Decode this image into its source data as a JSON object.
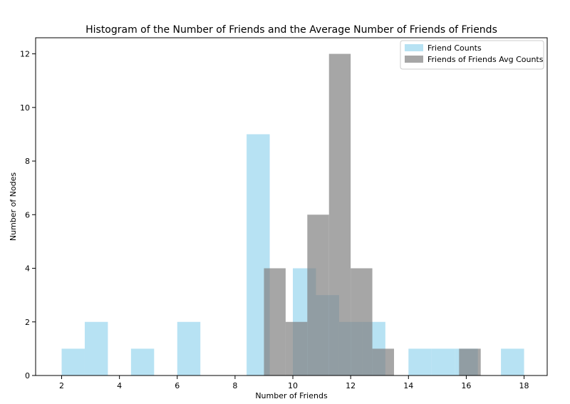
{
  "chart_data": {
    "type": "bar",
    "title": "Histogram of the Number of Friends and the Average Number of Friends of Friends",
    "xlabel": "Number of Friends",
    "ylabel": "Number of Nodes",
    "xlim": [
      1.1,
      18.8
    ],
    "ylim": [
      0,
      12.6
    ],
    "xticks": [
      2,
      4,
      6,
      8,
      10,
      12,
      14,
      16,
      18
    ],
    "yticks": [
      0,
      2,
      4,
      6,
      8,
      10,
      12
    ],
    "legend_position": "top-right",
    "series": [
      {
        "name": "Friend Counts",
        "color": "#87CEEB",
        "opacity": 0.6,
        "bins": [
          {
            "x0": 2.0,
            "x1": 2.8,
            "count": 1
          },
          {
            "x0": 2.8,
            "x1": 3.6,
            "count": 2
          },
          {
            "x0": 3.6,
            "x1": 4.4,
            "count": 0
          },
          {
            "x0": 4.4,
            "x1": 5.2,
            "count": 1
          },
          {
            "x0": 5.2,
            "x1": 6.0,
            "count": 0
          },
          {
            "x0": 6.0,
            "x1": 6.8,
            "count": 2
          },
          {
            "x0": 6.8,
            "x1": 7.6,
            "count": 0
          },
          {
            "x0": 7.6,
            "x1": 8.4,
            "count": 0
          },
          {
            "x0": 8.4,
            "x1": 9.2,
            "count": 9
          },
          {
            "x0": 9.2,
            "x1": 10.0,
            "count": 0
          },
          {
            "x0": 10.0,
            "x1": 10.8,
            "count": 4
          },
          {
            "x0": 10.8,
            "x1": 11.6,
            "count": 3
          },
          {
            "x0": 11.6,
            "x1": 12.4,
            "count": 2
          },
          {
            "x0": 12.4,
            "x1": 13.2,
            "count": 2
          },
          {
            "x0": 13.2,
            "x1": 14.0,
            "count": 0
          },
          {
            "x0": 14.0,
            "x1": 14.8,
            "count": 1
          },
          {
            "x0": 14.8,
            "x1": 15.6,
            "count": 1
          },
          {
            "x0": 15.6,
            "x1": 16.4,
            "count": 1
          },
          {
            "x0": 16.4,
            "x1": 17.2,
            "count": 0
          },
          {
            "x0": 17.2,
            "x1": 18.0,
            "count": 1
          }
        ]
      },
      {
        "name": "Friends of Friends Avg Counts",
        "color": "#808080",
        "opacity": 0.7,
        "bins": [
          {
            "x0": 9.0,
            "x1": 9.75,
            "count": 4
          },
          {
            "x0": 9.75,
            "x1": 10.5,
            "count": 2
          },
          {
            "x0": 10.5,
            "x1": 11.25,
            "count": 6
          },
          {
            "x0": 11.25,
            "x1": 12.0,
            "count": 12
          },
          {
            "x0": 12.0,
            "x1": 12.75,
            "count": 4
          },
          {
            "x0": 12.75,
            "x1": 13.5,
            "count": 1
          },
          {
            "x0": 13.5,
            "x1": 14.25,
            "count": 0
          },
          {
            "x0": 14.25,
            "x1": 15.0,
            "count": 0
          },
          {
            "x0": 15.0,
            "x1": 15.75,
            "count": 0
          },
          {
            "x0": 15.75,
            "x1": 16.5,
            "count": 1
          }
        ]
      }
    ]
  }
}
